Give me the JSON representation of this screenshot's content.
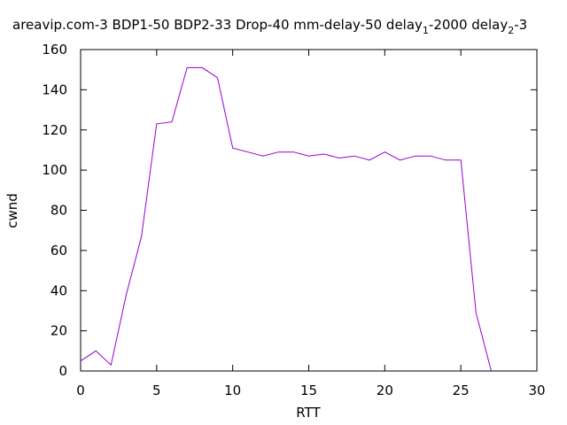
{
  "chart_data": {
    "type": "line",
    "title": {
      "main": "areavip.com-3 BDP1-50 BDP2-33 Drop-40 mm-delay-50 delay",
      "sub1": "1",
      "mid": "-2000 delay",
      "sub2": "2",
      "tail": "-3"
    },
    "xlabel": "RTT",
    "ylabel": "cwnd",
    "xlim": [
      0,
      30
    ],
    "ylim": [
      0,
      160
    ],
    "xticks": [
      0,
      5,
      10,
      15,
      20,
      25,
      30
    ],
    "yticks": [
      0,
      20,
      40,
      60,
      80,
      100,
      120,
      140,
      160
    ],
    "grid": false,
    "legend": "none",
    "series": [
      {
        "color": "#9400d3",
        "x": [
          0,
          1,
          2,
          3,
          4,
          5,
          6,
          7,
          8,
          9,
          10,
          11,
          12,
          13,
          14,
          15,
          16,
          17,
          18,
          19,
          20,
          21,
          22,
          23,
          24,
          25,
          26,
          27
        ],
        "y": [
          5,
          10,
          3,
          38,
          67,
          123,
          124,
          151,
          151,
          146,
          111,
          109,
          107,
          109,
          109,
          107,
          108,
          106,
          107,
          105,
          109,
          105,
          107,
          107,
          105,
          105,
          29,
          0
        ]
      }
    ]
  }
}
